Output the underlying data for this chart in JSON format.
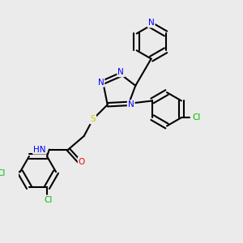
{
  "bg_color": "#ebebeb",
  "bond_color": "#000000",
  "bond_width": 1.5,
  "atom_colors": {
    "N": "#0000ff",
    "O": "#ff0000",
    "S": "#cccc00",
    "Cl": "#00bb00",
    "C": "#000000",
    "H": "#888888"
  },
  "font_size": 7.5,
  "fig_size": [
    3.0,
    3.0
  ],
  "dpi": 100
}
